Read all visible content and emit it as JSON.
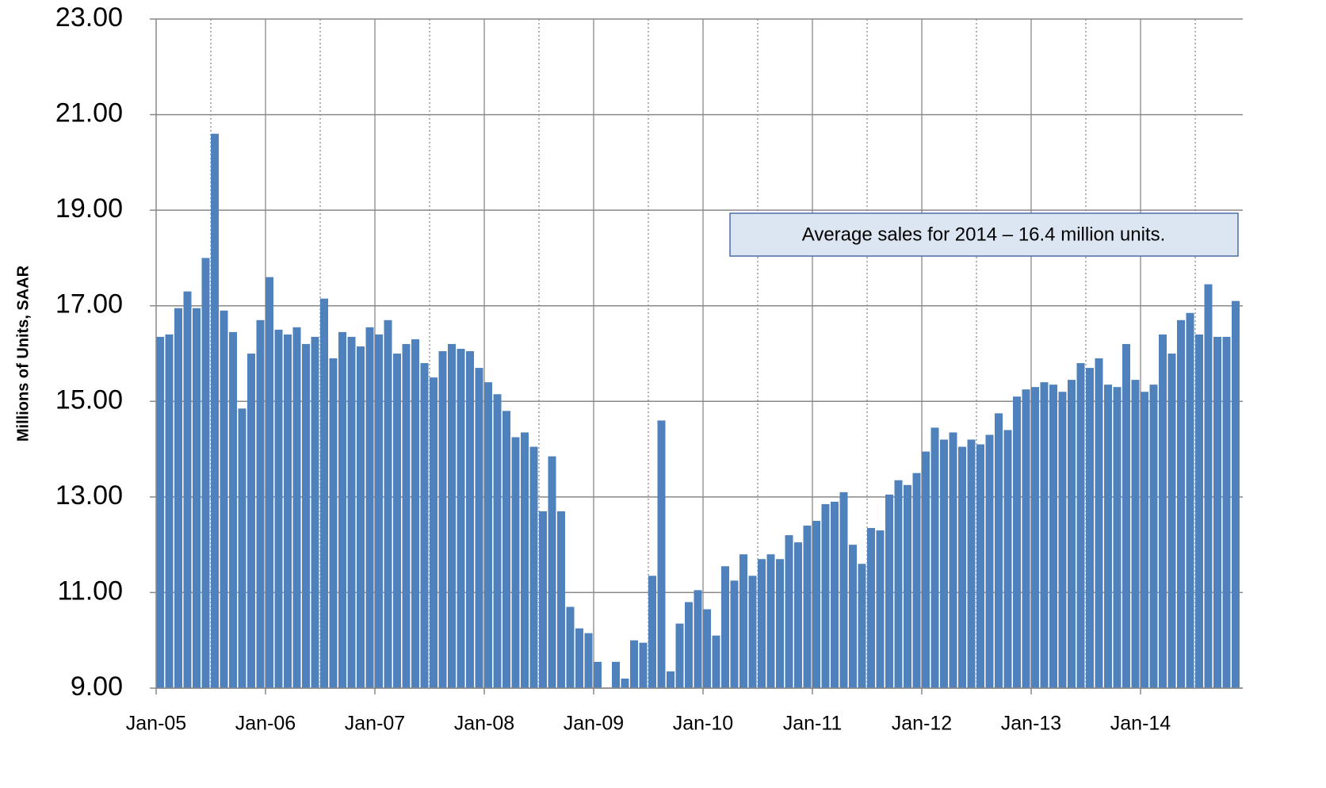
{
  "chart_data": {
    "type": "bar",
    "y_axis_label": "Millions of Units, SAAR",
    "annotation": "Average sales for 2014 – 16.4 million units.",
    "color": "#4f81bd",
    "grid": true,
    "categories": [
      "Jan-05",
      null,
      null,
      null,
      null,
      null,
      null,
      null,
      null,
      null,
      null,
      null,
      "Jan-06",
      null,
      null,
      null,
      null,
      null,
      null,
      null,
      null,
      null,
      null,
      null,
      "Jan-07",
      null,
      null,
      null,
      null,
      null,
      null,
      null,
      null,
      null,
      null,
      null,
      "Jan-08",
      null,
      null,
      null,
      null,
      null,
      null,
      null,
      null,
      null,
      null,
      null,
      "Jan-09",
      null,
      null,
      null,
      null,
      null,
      null,
      null,
      null,
      null,
      null,
      null,
      "Jan-10",
      null,
      null,
      null,
      null,
      null,
      null,
      null,
      null,
      null,
      null,
      null,
      "Jan-11",
      null,
      null,
      null,
      null,
      null,
      null,
      null,
      null,
      null,
      null,
      null,
      "Jan-12",
      null,
      null,
      null,
      null,
      null,
      null,
      null,
      null,
      null,
      null,
      null,
      "Jan-13",
      null,
      null,
      null,
      null,
      null,
      null,
      null,
      null,
      null,
      null,
      null,
      "Jan-14",
      null,
      null,
      null,
      null,
      null,
      null,
      null,
      null,
      null,
      null
    ],
    "values": [
      16.35,
      16.4,
      16.95,
      17.3,
      16.95,
      18.0,
      20.6,
      16.9,
      16.45,
      14.85,
      16.0,
      16.7,
      17.6,
      16.5,
      16.4,
      16.55,
      16.2,
      16.35,
      17.15,
      15.9,
      16.45,
      16.35,
      16.15,
      16.55,
      16.4,
      16.7,
      16.0,
      16.2,
      16.3,
      15.8,
      15.5,
      16.05,
      16.2,
      16.1,
      16.05,
      15.7,
      15.4,
      15.15,
      14.8,
      14.25,
      14.35,
      14.05,
      12.7,
      13.85,
      12.7,
      10.7,
      10.25,
      10.15,
      9.55,
      9.0,
      9.55,
      9.2,
      10.0,
      9.95,
      11.35,
      14.6,
      9.35,
      10.35,
      10.8,
      11.05,
      10.65,
      10.1,
      11.55,
      11.25,
      11.8,
      11.35,
      11.7,
      11.8,
      11.7,
      12.2,
      12.05,
      12.4,
      12.5,
      12.85,
      12.9,
      13.1,
      12.0,
      11.6,
      12.35,
      12.3,
      13.05,
      13.35,
      13.25,
      13.5,
      13.95,
      14.45,
      14.2,
      14.35,
      14.05,
      14.2,
      14.1,
      14.3,
      14.75,
      14.4,
      15.1,
      15.25,
      15.3,
      15.4,
      15.35,
      15.2,
      15.45,
      15.8,
      15.7,
      15.9,
      15.35,
      15.3,
      16.2,
      15.45,
      15.2,
      15.35,
      16.4,
      16.0,
      16.7,
      16.85,
      16.4,
      17.45,
      16.35,
      16.35,
      17.1
    ],
    "ylim": [
      9,
      23
    ],
    "yticks": [
      {
        "value": 9,
        "label": "9.00"
      },
      {
        "value": 11,
        "label": "11.00"
      },
      {
        "value": 13,
        "label": "13.00"
      },
      {
        "value": 15,
        "label": "15.00"
      },
      {
        "value": 17,
        "label": "17.00"
      },
      {
        "value": 19,
        "label": "19.00"
      },
      {
        "value": 21,
        "label": "21.00"
      },
      {
        "value": 23,
        "label": "23.00"
      }
    ]
  }
}
